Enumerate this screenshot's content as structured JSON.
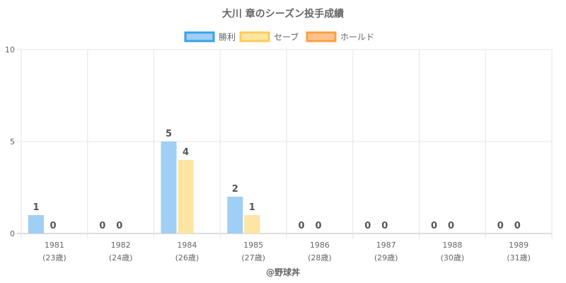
{
  "chart_data": {
    "type": "bar",
    "title": "大川 章のシーズン投手成績",
    "categories": [
      "1981",
      "1982",
      "1984",
      "1985",
      "1986",
      "1987",
      "1988",
      "1989"
    ],
    "category_sublabels": [
      "(23歳)",
      "(24歳)",
      "(26歳)",
      "(27歳)",
      "(28歳)",
      "(29歳)",
      "(30歳)",
      "(31歳)"
    ],
    "series": [
      {
        "name": "勝利",
        "values": [
          1,
          0,
          5,
          2,
          0,
          0,
          0,
          0
        ],
        "color": "#9fcff5",
        "border": "#36a2eb"
      },
      {
        "name": "セーブ",
        "values": [
          0,
          0,
          4,
          1,
          0,
          0,
          0,
          0
        ],
        "color": "#ffe5a3",
        "border": "#ffcd56"
      },
      {
        "name": "ホールド",
        "values": [
          0,
          0,
          0,
          0,
          0,
          0,
          0,
          0
        ],
        "color": "#ffc28f",
        "border": "#ff9f40"
      }
    ],
    "ylim": [
      0,
      10
    ],
    "yticks": [
      0,
      5,
      10
    ],
    "grid": true,
    "legend_position": "top",
    "xlabel": "",
    "ylabel": ""
  },
  "credit": "@野球丼"
}
